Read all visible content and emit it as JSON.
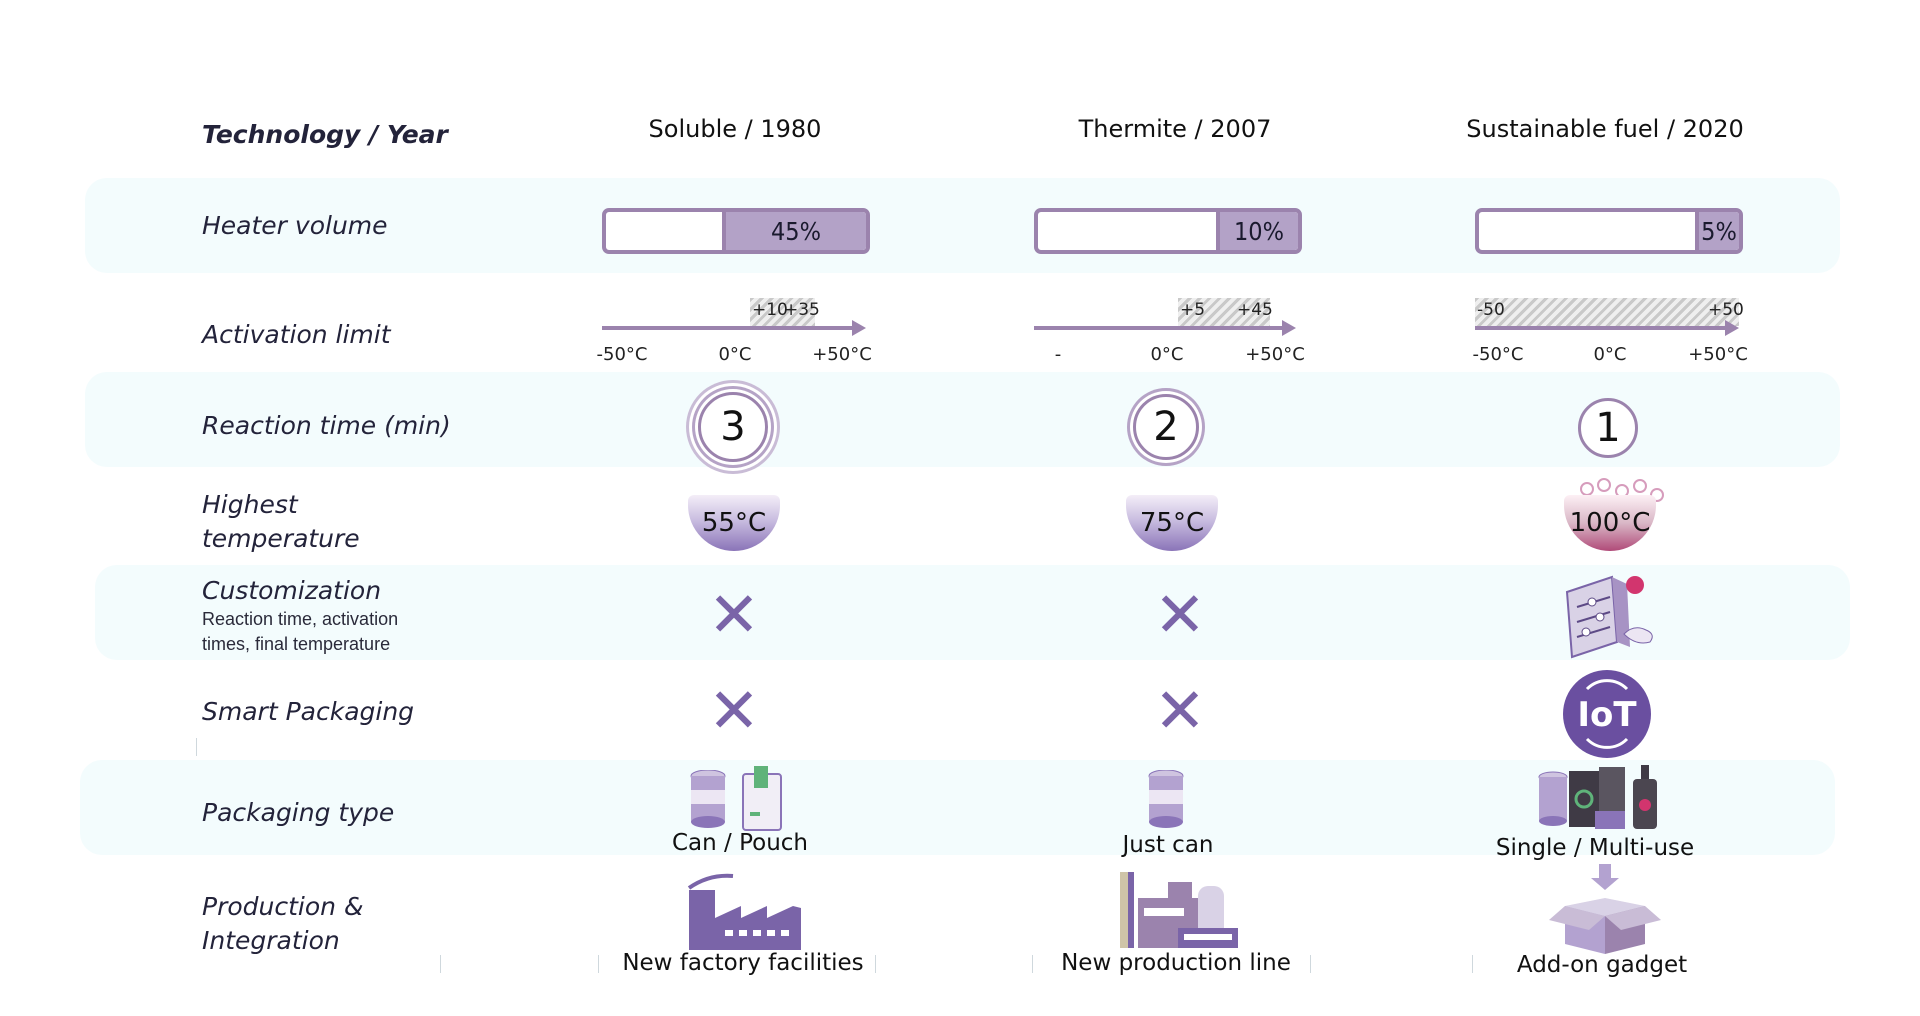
{
  "header": {
    "row_label": "Technology / Year",
    "columns": [
      "Soluble / 1980",
      "Thermite / 2007",
      "Sustainable fuel / 2020"
    ]
  },
  "rows": {
    "heater_volume": {
      "label": "Heater volume",
      "values": [
        "45%",
        "10%",
        "5%"
      ],
      "fraction": [
        0.45,
        0.1,
        0.05
      ]
    },
    "activation_limit": {
      "label": "Activation limit",
      "ranges": [
        {
          "low": "+10",
          "high": "+35",
          "ticks": [
            "-50°C",
            "0°C",
            "+50°C"
          ]
        },
        {
          "low": "+5",
          "high": "+45",
          "ticks": [
            "-",
            "0°C",
            "+50°C"
          ]
        },
        {
          "low": "-50",
          "high": "+50",
          "ticks": [
            "-50°C",
            "0°C",
            "+50°C"
          ]
        }
      ]
    },
    "reaction_time": {
      "label": "Reaction time (min)",
      "values": [
        "3",
        "2",
        "1"
      ]
    },
    "highest_temperature": {
      "label_line1": "Highest",
      "label_line2": "temperature",
      "values": [
        "55°C",
        "75°C",
        "100°C"
      ]
    },
    "customization": {
      "label": "Customization",
      "sub_line1": "Reaction time, activation",
      "sub_line2": "times,  final temperature",
      "values": [
        "✕",
        "✕",
        "sliders-icon"
      ]
    },
    "smart_packaging": {
      "label": "Smart Packaging",
      "values": [
        "✕",
        "✕",
        "iot-icon"
      ],
      "iot_text": "IoT"
    },
    "packaging_type": {
      "label": "Packaging type",
      "captions": [
        "Can / Pouch",
        "Just can",
        "Single / Multi-use"
      ]
    },
    "production": {
      "label_line1": "Production &",
      "label_line2": "Integration",
      "captions": [
        "New factory facilities",
        "New production line",
        "Add-on gadget"
      ]
    }
  },
  "colors": {
    "accent": "#9b83ad",
    "band": "#f3fcfd",
    "icon": "#7a64a8"
  }
}
